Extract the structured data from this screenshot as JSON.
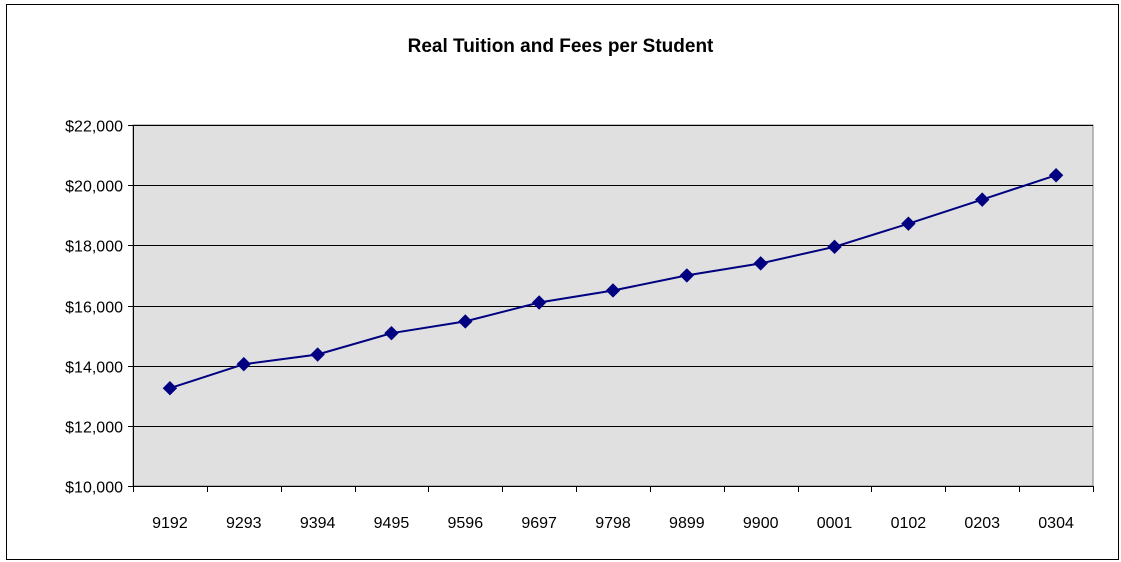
{
  "chart_data": {
    "type": "line",
    "title": "Real Tuition and Fees per Student",
    "xlabel": "",
    "ylabel": "",
    "categories": [
      "9192",
      "9293",
      "9394",
      "9495",
      "9596",
      "9697",
      "9798",
      "9899",
      "9900",
      "0001",
      "0102",
      "0203",
      "0304"
    ],
    "series": [
      {
        "values": [
          13250,
          14050,
          14370,
          15080,
          15470,
          16100,
          16500,
          17000,
          17400,
          17950,
          18720,
          19520,
          20330
        ]
      }
    ],
    "ylim": [
      10000,
      22000
    ],
    "ytick_values": [
      10000,
      12000,
      14000,
      16000,
      18000,
      20000,
      22000
    ],
    "ytick_labels": [
      "$10,000",
      "$12,000",
      "$14,000",
      "$16,000",
      "$18,000",
      "$20,000",
      "$22,000"
    ],
    "grid": true,
    "legend": "none",
    "colors": {
      "series_line": "#000080",
      "plot_background": "#e0e0e0",
      "gridline": "#000000"
    }
  }
}
